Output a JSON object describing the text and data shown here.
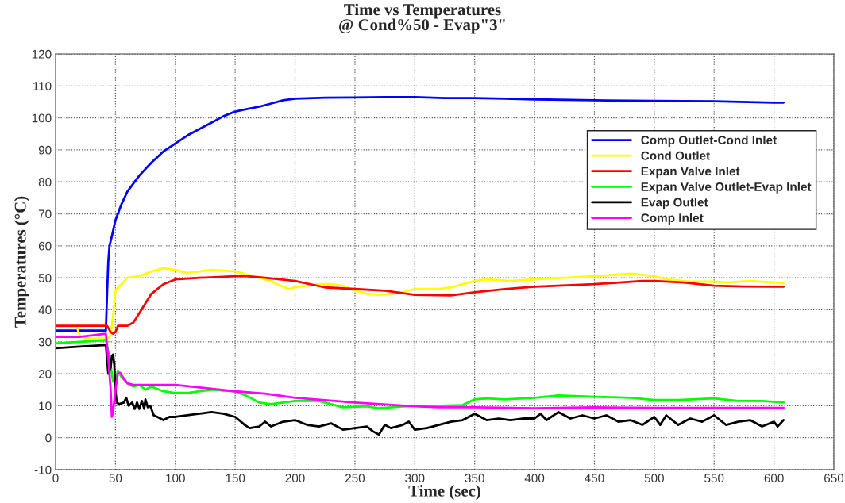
{
  "chart_data": {
    "type": "line",
    "title": "Time vs Temperatures",
    "subtitle": "@ Cond%50 - Evap\"3\"",
    "xlabel": "Time (sec)",
    "ylabel": "Temperatures (°C)",
    "xlim": [
      0,
      650
    ],
    "xticks": [
      0,
      50,
      100,
      150,
      200,
      250,
      300,
      350,
      400,
      450,
      500,
      550,
      600,
      650
    ],
    "ylim": [
      -10,
      120
    ],
    "yticks": [
      -10,
      0,
      10,
      20,
      30,
      40,
      50,
      60,
      70,
      80,
      90,
      100,
      110,
      120
    ],
    "grid": true,
    "legend": "upper right",
    "line_style": "solid",
    "series": [
      {
        "name": "Comp Outlet-Cond Inlet",
        "color": "#0000ff",
        "x": [
          0,
          42,
          43,
          44,
          45,
          47,
          50,
          55,
          60,
          70,
          80,
          90,
          100,
          110,
          120,
          130,
          140,
          150,
          160,
          170,
          180,
          190,
          200,
          225,
          250,
          275,
          300,
          325,
          350,
          375,
          400,
          450,
          500,
          550,
          600,
          608
        ],
        "values": [
          33.5,
          33.5,
          45,
          55,
          60,
          63,
          68,
          73,
          77,
          82,
          86,
          89.5,
          92,
          94.5,
          96.5,
          98.5,
          100.5,
          102,
          102.8,
          103.5,
          104.5,
          105.5,
          106,
          106.3,
          106.4,
          106.5,
          106.5,
          106.2,
          106.2,
          106,
          105.8,
          105.5,
          105.3,
          105.2,
          104.8,
          104.8
        ]
      },
      {
        "name": "Cond Outlet",
        "color": "#ffff00",
        "x": [
          0,
          18,
          20,
          25,
          43,
          46,
          48,
          50,
          55,
          60,
          70,
          80,
          90,
          100,
          110,
          120,
          130,
          150,
          160,
          170,
          180,
          185,
          195,
          200,
          210,
          220,
          230,
          240,
          250,
          260,
          270,
          280,
          290,
          300,
          320,
          330,
          340,
          350,
          360,
          380,
          400,
          450,
          470,
          480,
          500,
          510,
          530,
          550,
          560,
          580,
          600,
          608
        ],
        "values": [
          34.5,
          34.5,
          32,
          31,
          31,
          32,
          38,
          46,
          48,
          50,
          50.5,
          52,
          53,
          52.5,
          51.5,
          52,
          52.5,
          52,
          51,
          50,
          49,
          48,
          46.5,
          47,
          47.5,
          48,
          48,
          47.5,
          46,
          45,
          44.7,
          45,
          45.5,
          46.5,
          46.5,
          47,
          48,
          49,
          49.5,
          49,
          49.5,
          50.5,
          51,
          51.3,
          50.5,
          49.5,
          48.8,
          48.8,
          48.5,
          49,
          48.5,
          48.3
        ]
      },
      {
        "name": "Expan Valve Inlet",
        "color": "#ff0000",
        "x": [
          0,
          43,
          46,
          48,
          50,
          52,
          60,
          65,
          70,
          80,
          90,
          100,
          120,
          150,
          160,
          175,
          200,
          225,
          250,
          275,
          300,
          330,
          350,
          375,
          400,
          450,
          490,
          500,
          525,
          550,
          575,
          600,
          608
        ],
        "values": [
          35,
          35,
          33,
          32.5,
          33,
          35,
          35,
          36,
          39,
          45,
          48,
          49.5,
          50,
          50.5,
          50.5,
          50,
          49,
          47,
          46.5,
          46,
          44.7,
          44.5,
          45.5,
          46.5,
          47.2,
          48,
          49,
          49,
          48.5,
          47.5,
          47.3,
          47.2,
          47.2
        ]
      },
      {
        "name": "Expan Valve Outlet-Evap Inlet",
        "color": "#00ff00",
        "x": [
          0,
          20,
          42,
          45,
          47,
          48,
          50,
          52,
          55,
          60,
          65,
          70,
          75,
          80,
          90,
          100,
          110,
          120,
          130,
          150,
          160,
          170,
          180,
          190,
          200,
          220,
          230,
          240,
          260,
          270,
          280,
          300,
          320,
          340,
          350,
          360,
          375,
          400,
          420,
          450,
          480,
          500,
          520,
          550,
          570,
          590,
          608
        ],
        "values": [
          29.5,
          30,
          30.5,
          25,
          20,
          17.5,
          18,
          21,
          19,
          17,
          16,
          16.5,
          15,
          16,
          14.5,
          14,
          14,
          14.5,
          15,
          14.5,
          13,
          11,
          10.5,
          11,
          11.5,
          11.5,
          10.5,
          9.5,
          9.8,
          9.2,
          9.5,
          10,
          10,
          10.2,
          12,
          12.3,
          12,
          12.5,
          13.2,
          12.8,
          12.5,
          11.8,
          11.8,
          12.3,
          11.5,
          11.5,
          11
        ]
      },
      {
        "name": "Evap Outlet",
        "color": "#000000",
        "x": [
          0,
          20,
          42,
          44,
          46,
          47,
          48,
          49,
          50,
          51,
          53,
          57,
          59,
          61,
          64,
          66,
          68,
          70,
          72,
          74,
          75,
          77,
          79,
          82,
          85,
          90,
          95,
          100,
          110,
          120,
          130,
          140,
          150,
          158,
          162,
          170,
          175,
          180,
          190,
          200,
          210,
          220,
          230,
          240,
          250,
          260,
          265,
          270,
          275,
          280,
          290,
          295,
          300,
          310,
          320,
          330,
          340,
          350,
          360,
          370,
          380,
          390,
          400,
          405,
          410,
          420,
          430,
          440,
          450,
          460,
          470,
          480,
          490,
          500,
          505,
          510,
          520,
          530,
          540,
          550,
          560,
          570,
          580,
          590,
          600,
          603,
          608
        ],
        "values": [
          28,
          28.5,
          29,
          20,
          22,
          25.5,
          26,
          23,
          15,
          11,
          10.5,
          11,
          12.5,
          10,
          11,
          9,
          11,
          9,
          11.5,
          9,
          12,
          9.5,
          10,
          7,
          6.5,
          5.5,
          6.5,
          6.5,
          7,
          7.5,
          8,
          7.5,
          6.5,
          4,
          3,
          3.5,
          5,
          3.5,
          5,
          5.5,
          4,
          3.5,
          4.5,
          2.5,
          3,
          3.5,
          2,
          1,
          4,
          3,
          4,
          5,
          2.5,
          3,
          4,
          5,
          5.5,
          7.5,
          5.5,
          6,
          5.5,
          6,
          6,
          7.5,
          5.5,
          8,
          6,
          7,
          6,
          7,
          5,
          5.5,
          4,
          6.5,
          4,
          7,
          4,
          6,
          5,
          7,
          4,
          5,
          5.5,
          3.5,
          5,
          3.5,
          5.5
        ]
      },
      {
        "name": "Comp Inlet",
        "color": "#ff00ff",
        "x": [
          0,
          20,
          42,
          44,
          46,
          47,
          48,
          50,
          52,
          54,
          56,
          60,
          65,
          80,
          100,
          125,
          150,
          175,
          200,
          250,
          300,
          320,
          350,
          400,
          450,
          500,
          550,
          608
        ],
        "values": [
          31.5,
          31.5,
          32.5,
          25,
          15,
          6.5,
          8,
          15,
          20,
          20.3,
          19,
          17,
          16.5,
          16.5,
          16.5,
          15.5,
          14.5,
          13.8,
          12.5,
          11,
          9.8,
          9.5,
          9.5,
          9.2,
          9.5,
          9.3,
          9.3,
          9.3
        ]
      }
    ]
  }
}
